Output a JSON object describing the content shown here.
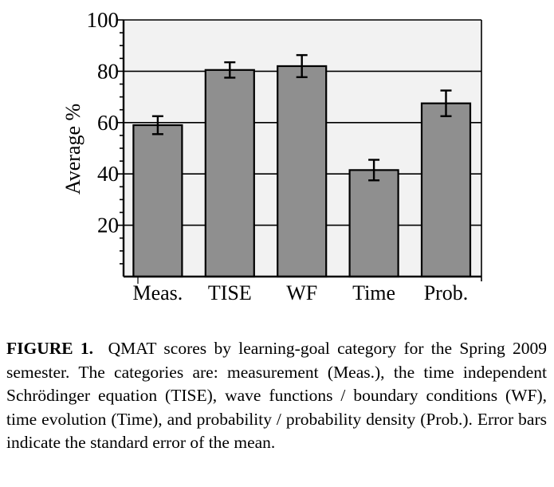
{
  "chart_data": {
    "type": "bar",
    "title": "",
    "xlabel": "",
    "ylabel": "Average %",
    "ylim": [
      0,
      100
    ],
    "yticks": [
      20,
      40,
      60,
      80,
      100
    ],
    "ytick_labels": [
      "20",
      "40",
      "60",
      "80",
      "100"
    ],
    "minor_tick_step": 5,
    "grid": "horizontal major lines at 20, 40, 60, 80",
    "categories": [
      "Meas.",
      "TISE",
      "WF",
      "Time",
      "Prob."
    ],
    "values": [
      59,
      80.5,
      82,
      41.5,
      67.5
    ],
    "error_bars": [
      3.5,
      3,
      4.3,
      4,
      5
    ],
    "error_bar_meaning": "standard error of the mean",
    "legend": null,
    "colors": {
      "bar_fill": "#8f8f8f",
      "bar_edge": "#000000",
      "plot_background": "#f2f2f2",
      "gridline": "#000000"
    }
  },
  "caption": {
    "label": "FIGURE 1.",
    "text": "QMAT scores by learning-goal category for the Spring 2009 semester. The categories are: measurement (Meas.), the time independent Schrödinger equation (TISE), wave functions / boundary conditions (WF), time evolution (Time), and probability / probability density (Prob.). Error bars indicate the standard error of the mean."
  }
}
